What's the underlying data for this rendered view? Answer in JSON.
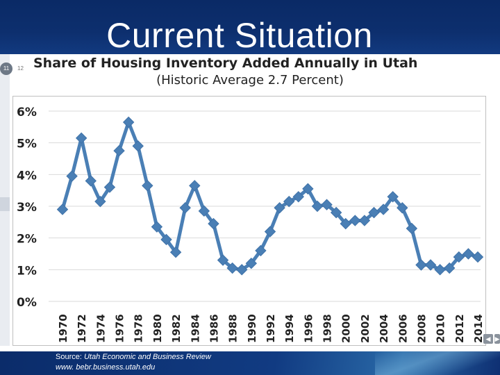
{
  "slide": {
    "title": "Current Situation",
    "page_badge": "11",
    "page_next": "12",
    "source_prefix": "Source: ",
    "source_name": "Utah Economic and Business Review",
    "source_url": "www. bebr.business.utah.edu"
  },
  "colors": {
    "banner": "#0d2f6e",
    "series": "#4a7fb5",
    "grid": "#d9d9d9"
  },
  "icons": {
    "prev": "triangle-left-icon",
    "next": "triangle-right-icon"
  },
  "chart_data": {
    "type": "line",
    "title": "Share of Housing Inventory Added Annually in Utah",
    "subtitle": "(Historic Average 2.7 Percent)",
    "xlabel": "",
    "ylabel": "",
    "ylim": [
      0,
      6
    ],
    "y_ticks": [
      "0%",
      "1%",
      "2%",
      "3%",
      "4%",
      "5%",
      "6%"
    ],
    "x_tick_labels": [
      "1970",
      "1972",
      "1974",
      "1976",
      "1978",
      "1980",
      "1982",
      "1984",
      "1986",
      "1988",
      "1990",
      "1992",
      "1994",
      "1996",
      "1998",
      "2000",
      "2002",
      "2004",
      "2006",
      "2008",
      "2010",
      "2012",
      "2014"
    ],
    "grid": "horizontal",
    "legend": "none",
    "marker": "diamond",
    "x": [
      1970,
      1971,
      1972,
      1973,
      1974,
      1975,
      1976,
      1977,
      1978,
      1979,
      1980,
      1981,
      1982,
      1983,
      1984,
      1985,
      1986,
      1987,
      1988,
      1989,
      1990,
      1991,
      1992,
      1993,
      1994,
      1995,
      1996,
      1997,
      1998,
      1999,
      2000,
      2001,
      2002,
      2003,
      2004,
      2005,
      2006,
      2007,
      2008,
      2009,
      2010,
      2011,
      2012,
      2013,
      2014
    ],
    "values": [
      2.9,
      3.95,
      5.15,
      3.8,
      3.15,
      3.6,
      4.75,
      5.65,
      4.9,
      3.65,
      2.35,
      1.95,
      1.55,
      2.95,
      3.65,
      2.85,
      2.45,
      1.3,
      1.05,
      1.0,
      1.2,
      1.6,
      2.2,
      2.95,
      3.15,
      3.3,
      3.55,
      3.0,
      3.05,
      2.8,
      2.45,
      2.55,
      2.55,
      2.8,
      2.9,
      3.3,
      2.95,
      2.3,
      1.15,
      1.15,
      1.0,
      1.05,
      1.4,
      1.5,
      1.4
    ]
  }
}
